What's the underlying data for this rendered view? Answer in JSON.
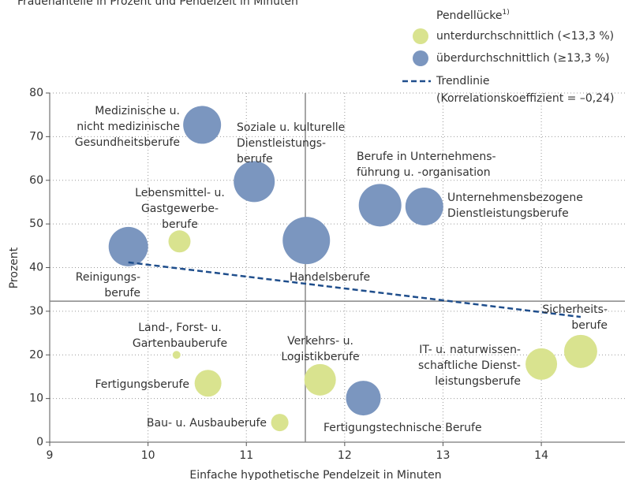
{
  "chart_data": {
    "type": "bubble",
    "title": "Frauenanteile in Prozent und Pendelzeit in Minuten",
    "x_label": "Einfache hypothetische Pendelzeit in Minuten",
    "y_label": "Prozent",
    "xlim": [
      9,
      14.85
    ],
    "xticks": [
      9,
      10,
      11,
      12,
      13,
      14
    ],
    "ylim": [
      0,
      80
    ],
    "yticks": [
      0,
      10,
      20,
      30,
      40,
      50,
      60,
      70,
      80
    ],
    "grid": true,
    "legend_title": "Pendellücke",
    "legend_title_note": "1)",
    "reference_x": 11.6,
    "reference_y": 32.3,
    "series": [
      {
        "name": "unterdurchschnittlich (<13,3 %)",
        "color": "#d9e38f",
        "x": [
          10.32,
          10.29,
          10.61,
          11.75,
          11.34,
          14.0,
          14.4
        ],
        "values": [
          46.0,
          20.0,
          13.5,
          14.3,
          4.5,
          17.9,
          20.8
        ],
        "sizes": [
          14,
          5,
          17,
          20,
          11,
          20,
          21
        ],
        "labels": [
          [
            "Lebensmittel- u.",
            "Gastgewerbe-",
            "berufe"
          ],
          [
            "Land-, Forst- u.",
            "Gartenbauberufe"
          ],
          [
            "Fertigungsberufe"
          ],
          [
            "Verkehrs- u.",
            "Logistikberufe"
          ],
          [
            "Bau- u. Ausbauberufe"
          ],
          [
            "IT- u. naturwissen-",
            "schaftliche Dienst-",
            "leistungsberufe"
          ],
          [
            "Sicherheits-",
            "berufe"
          ]
        ]
      },
      {
        "name": "überdurchschnittlich (≥13,3 %)",
        "color": "#7b96bf",
        "x": [
          10.55,
          11.08,
          11.61,
          12.36,
          12.81,
          9.8,
          12.19
        ],
        "values": [
          72.7,
          59.7,
          46.2,
          54.3,
          54.0,
          44.8,
          10.1
        ],
        "sizes": [
          24,
          26,
          30,
          27,
          24,
          25,
          22
        ],
        "labels": [
          [
            "Medizinische u.",
            "nicht medizinische",
            "Gesundheitsberufe"
          ],
          [
            "Soziale u. kulturelle",
            "Dienstleistungs-",
            "berufe"
          ],
          [
            "Handelsberufe"
          ],
          [
            "Berufe in Unternehmens-",
            "führung u. -organisation"
          ],
          [
            "Unternehmensbezogene",
            "Dienstleistungsberufe"
          ],
          [
            "Reinigungs-",
            "berufe"
          ],
          [
            "Fertigungstechnische Berufe"
          ]
        ]
      }
    ],
    "trend": {
      "name": "Trendlinie",
      "note": "(Korrelationskoeffizient = –0,24)",
      "color": "#1f4e8c",
      "x": [
        9.8,
        14.4
      ],
      "values": [
        41.2,
        28.7
      ]
    }
  }
}
